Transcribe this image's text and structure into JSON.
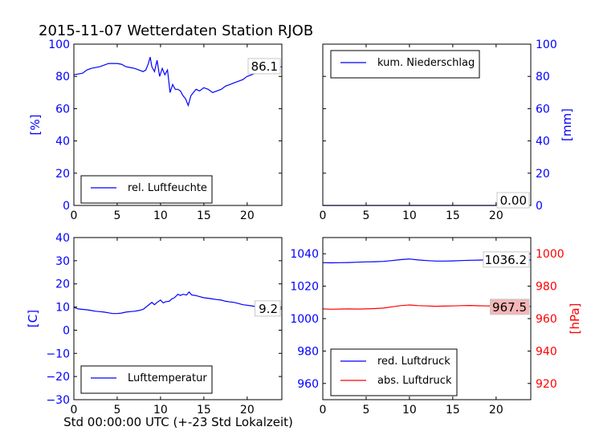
{
  "title": "2015-11-07 Wetterdaten Station RJOB",
  "xlabel": "Std 00:00:00 UTC (+-23 Std Lokalzeit)",
  "colors": {
    "blue": "#0000ff",
    "red": "#ff0000",
    "black": "#000000",
    "value_box_red": "#f4b6b6"
  },
  "chart_data": [
    {
      "type": "line",
      "ylabel": "[%]",
      "xlim": [
        0,
        24
      ],
      "ylim": [
        0,
        100
      ],
      "xticks": [
        0,
        5,
        10,
        15,
        20
      ],
      "yticks": [
        0,
        20,
        40,
        60,
        80,
        100
      ],
      "legend_position": "lower-left",
      "value_label": "86.1",
      "series": [
        {
          "name": "rel. Luftfeuchte",
          "color": "#0000ff",
          "x": [
            0,
            0.5,
            1,
            1.5,
            2,
            3,
            4,
            5,
            5.5,
            6,
            6.5,
            7,
            7.5,
            8,
            8.3,
            8.6,
            8.8,
            9.0,
            9.3,
            9.6,
            9.9,
            10.2,
            10.5,
            10.8,
            11.1,
            11.4,
            11.7,
            12.0,
            12.3,
            12.6,
            12.9,
            13.2,
            13.5,
            13.8,
            14.1,
            14.5,
            15.0,
            15.5,
            16.0,
            16.5,
            17,
            17.5,
            18,
            18.5,
            19,
            19.5,
            20,
            20.5,
            21,
            21.5,
            22,
            22.5,
            23,
            23.5,
            24
          ],
          "y": [
            81,
            81.5,
            82,
            84,
            85,
            86,
            88,
            88,
            87.5,
            86,
            85.5,
            85,
            84,
            83,
            84,
            88,
            92,
            86,
            83,
            90,
            80,
            85,
            81,
            84,
            70,
            75,
            72,
            72,
            71,
            68,
            66,
            62,
            68,
            70,
            72,
            71,
            73,
            72,
            70,
            71,
            72,
            74,
            75,
            76,
            77,
            78,
            80,
            81,
            82,
            83,
            84,
            84.5,
            85,
            85.5,
            86
          ]
        }
      ]
    },
    {
      "type": "line",
      "ylabel": "[mm]",
      "xlim": [
        0,
        24
      ],
      "ylim": [
        0,
        100
      ],
      "xticks": [
        0,
        5,
        10,
        15,
        20
      ],
      "yticks": [
        0,
        20,
        40,
        60,
        80,
        100
      ],
      "legend_position": "upper-left",
      "value_label": "0.00",
      "series": [
        {
          "name": "kum. Niederschlag",
          "color": "#0000ff",
          "x": [
            0,
            24
          ],
          "y": [
            0,
            0
          ]
        }
      ]
    },
    {
      "type": "line",
      "ylabel": "[C]",
      "xlim": [
        0,
        24
      ],
      "ylim": [
        -30,
        40
      ],
      "xticks": [
        0,
        5,
        10,
        15,
        20
      ],
      "yticks": [
        -30,
        -20,
        -10,
        0,
        10,
        20,
        30,
        40
      ],
      "legend_position": "lower-left",
      "value_label": "9.2",
      "series": [
        {
          "name": "Lufttemperatur",
          "color": "#0000ff",
          "x": [
            0,
            0.5,
            1,
            1.5,
            2,
            2.5,
            3,
            3.5,
            4,
            4.5,
            5,
            5.5,
            6,
            6.5,
            7,
            7.5,
            8,
            8.5,
            9,
            9.3,
            9.6,
            10,
            10.3,
            10.6,
            11,
            11.3,
            11.6,
            12,
            12.3,
            12.6,
            13,
            13.3,
            13.6,
            14,
            14.5,
            15,
            15.5,
            16,
            16.5,
            17,
            17.5,
            18,
            18.5,
            19,
            19.5,
            20,
            20.5,
            21,
            21.5,
            22,
            22.5,
            23,
            23.5,
            24
          ],
          "y": [
            9.8,
            9.2,
            9,
            8.8,
            8.5,
            8.2,
            8,
            7.8,
            7.5,
            7.2,
            7.2,
            7.4,
            7.8,
            8,
            8.2,
            8.5,
            9,
            10.5,
            12,
            11,
            12,
            13,
            11.8,
            12.3,
            12.5,
            13.5,
            14,
            15.5,
            15,
            15.5,
            15.2,
            16.5,
            15.2,
            15,
            14.5,
            14,
            13.8,
            13.5,
            13.2,
            13,
            12.5,
            12.2,
            12,
            11.5,
            11,
            10.8,
            10.5,
            10.2,
            10,
            9.8,
            9.5,
            9.3,
            9.2,
            9.2
          ]
        }
      ]
    },
    {
      "type": "line",
      "ylabel": "[hPa]",
      "xlim": [
        0,
        24
      ],
      "ylim_left": [
        950,
        1050
      ],
      "ylim_right": [
        910,
        1010
      ],
      "xticks": [
        0,
        5,
        10,
        15,
        20
      ],
      "yticks_left": [
        960,
        980,
        1000,
        1020,
        1040
      ],
      "yticks_right": [
        920,
        940,
        960,
        980,
        1000
      ],
      "legend_position": "lower-left",
      "value_labels": [
        "1036.2",
        "967.5"
      ],
      "series": [
        {
          "name": "red. Luftdruck",
          "color": "#0000ff",
          "axis": "left",
          "x": [
            0,
            1,
            2,
            3,
            4,
            5,
            6,
            7,
            8,
            9,
            10,
            11,
            12,
            13,
            14,
            15,
            16,
            17,
            18,
            19,
            20,
            21,
            22,
            23,
            24
          ],
          "y": [
            1034.5,
            1034.4,
            1034.5,
            1034.6,
            1034.8,
            1035,
            1035.1,
            1035.3,
            1035.8,
            1036.4,
            1036.8,
            1036.2,
            1035.8,
            1035.5,
            1035.5,
            1035.6,
            1035.8,
            1036,
            1036.1,
            1036.2,
            1036.2,
            1036.3,
            1036.2,
            1036.2,
            1036.2
          ]
        },
        {
          "name": "abs. Luftdruck",
          "color": "#ff0000",
          "axis": "right",
          "x": [
            0,
            1,
            2,
            3,
            4,
            5,
            6,
            7,
            8,
            9,
            10,
            11,
            12,
            13,
            14,
            15,
            16,
            17,
            18,
            19,
            20,
            21,
            22,
            23,
            24
          ],
          "y": [
            966,
            965.8,
            965.9,
            966,
            965.9,
            966,
            966.2,
            966.5,
            967.3,
            968,
            968.4,
            968,
            967.8,
            967.6,
            967.7,
            967.8,
            968,
            968.1,
            967.9,
            967.8,
            967.7,
            967.6,
            967.5,
            967.5,
            967.5
          ]
        }
      ]
    }
  ]
}
